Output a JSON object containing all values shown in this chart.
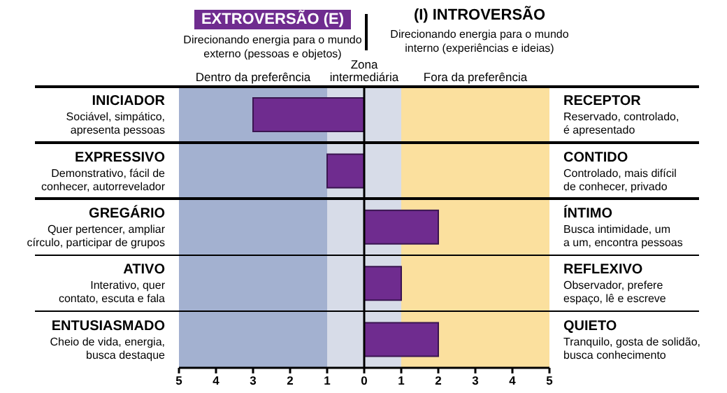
{
  "chart_data": {
    "type": "bar",
    "orientation": "horizontal",
    "title": "EXTROVERSÃO (E)",
    "subtitle": "Direcionando energia para o mundo externo (pessoas e objetos)",
    "annotations": [
      "(I) INTROVERSÃO",
      "Direcionando energia para o mundo interno (experiências e ideias)"
    ],
    "categories": [
      "INICIADOR\nSociável, simpático,\napresenta pessoas",
      "EXPRESSIVO\nDemonstrativo, fácil de\nconhecer, autorrevelador",
      "GREGÁRIO\nQuer pertencer, ampliar\ncírculo, participar de grupos",
      "ATIVO\nInterativo, quer\ncontato, escuta e fala",
      "ENTUSIASMADO\nCheio de vida, energia,\nbusca destaque"
    ],
    "y2_categories": [
      "RECEPTOR\nReservado, controlado,\né apresentado",
      "CONTIDO\nControlado, mais difícil\nde conhecer, privado",
      "ÍNTIMO\nBusca intimidade, um\na um, encontra pessoas",
      "REFLEXIVO\nObservador, prefere\nespaço, lê e escreve",
      "QUIETO\nTranquilo, gosta de solidão,\nbusca conhecimento"
    ],
    "values": [
      -3,
      -1,
      2,
      1,
      2
    ],
    "color": "#6f2c8f",
    "xlim": [
      -5,
      5
    ],
    "xticks": [
      {
        "value": -5,
        "label": "5"
      },
      {
        "value": -4,
        "label": "4"
      },
      {
        "value": -3,
        "label": "3"
      },
      {
        "value": -2,
        "label": "2"
      },
      {
        "value": -1,
        "label": "1"
      },
      0,
      1,
      2,
      3,
      4,
      5
    ],
    "bands": [
      {
        "axis": "x",
        "from": -5,
        "to": -1,
        "label": "Dentro da preferência",
        "color": "#a3b1d0"
      },
      {
        "axis": "x",
        "from": -1,
        "to": 1,
        "label": "Zona intermediária",
        "color": "#d7dce8"
      },
      {
        "axis": "x",
        "from": 1,
        "to": 5,
        "label": "Fora da preferência",
        "color": "#fbe09e"
      }
    ],
    "ref_lines": [
      {
        "axis": "x",
        "value": 0,
        "color": "#000000"
      }
    ]
  }
}
